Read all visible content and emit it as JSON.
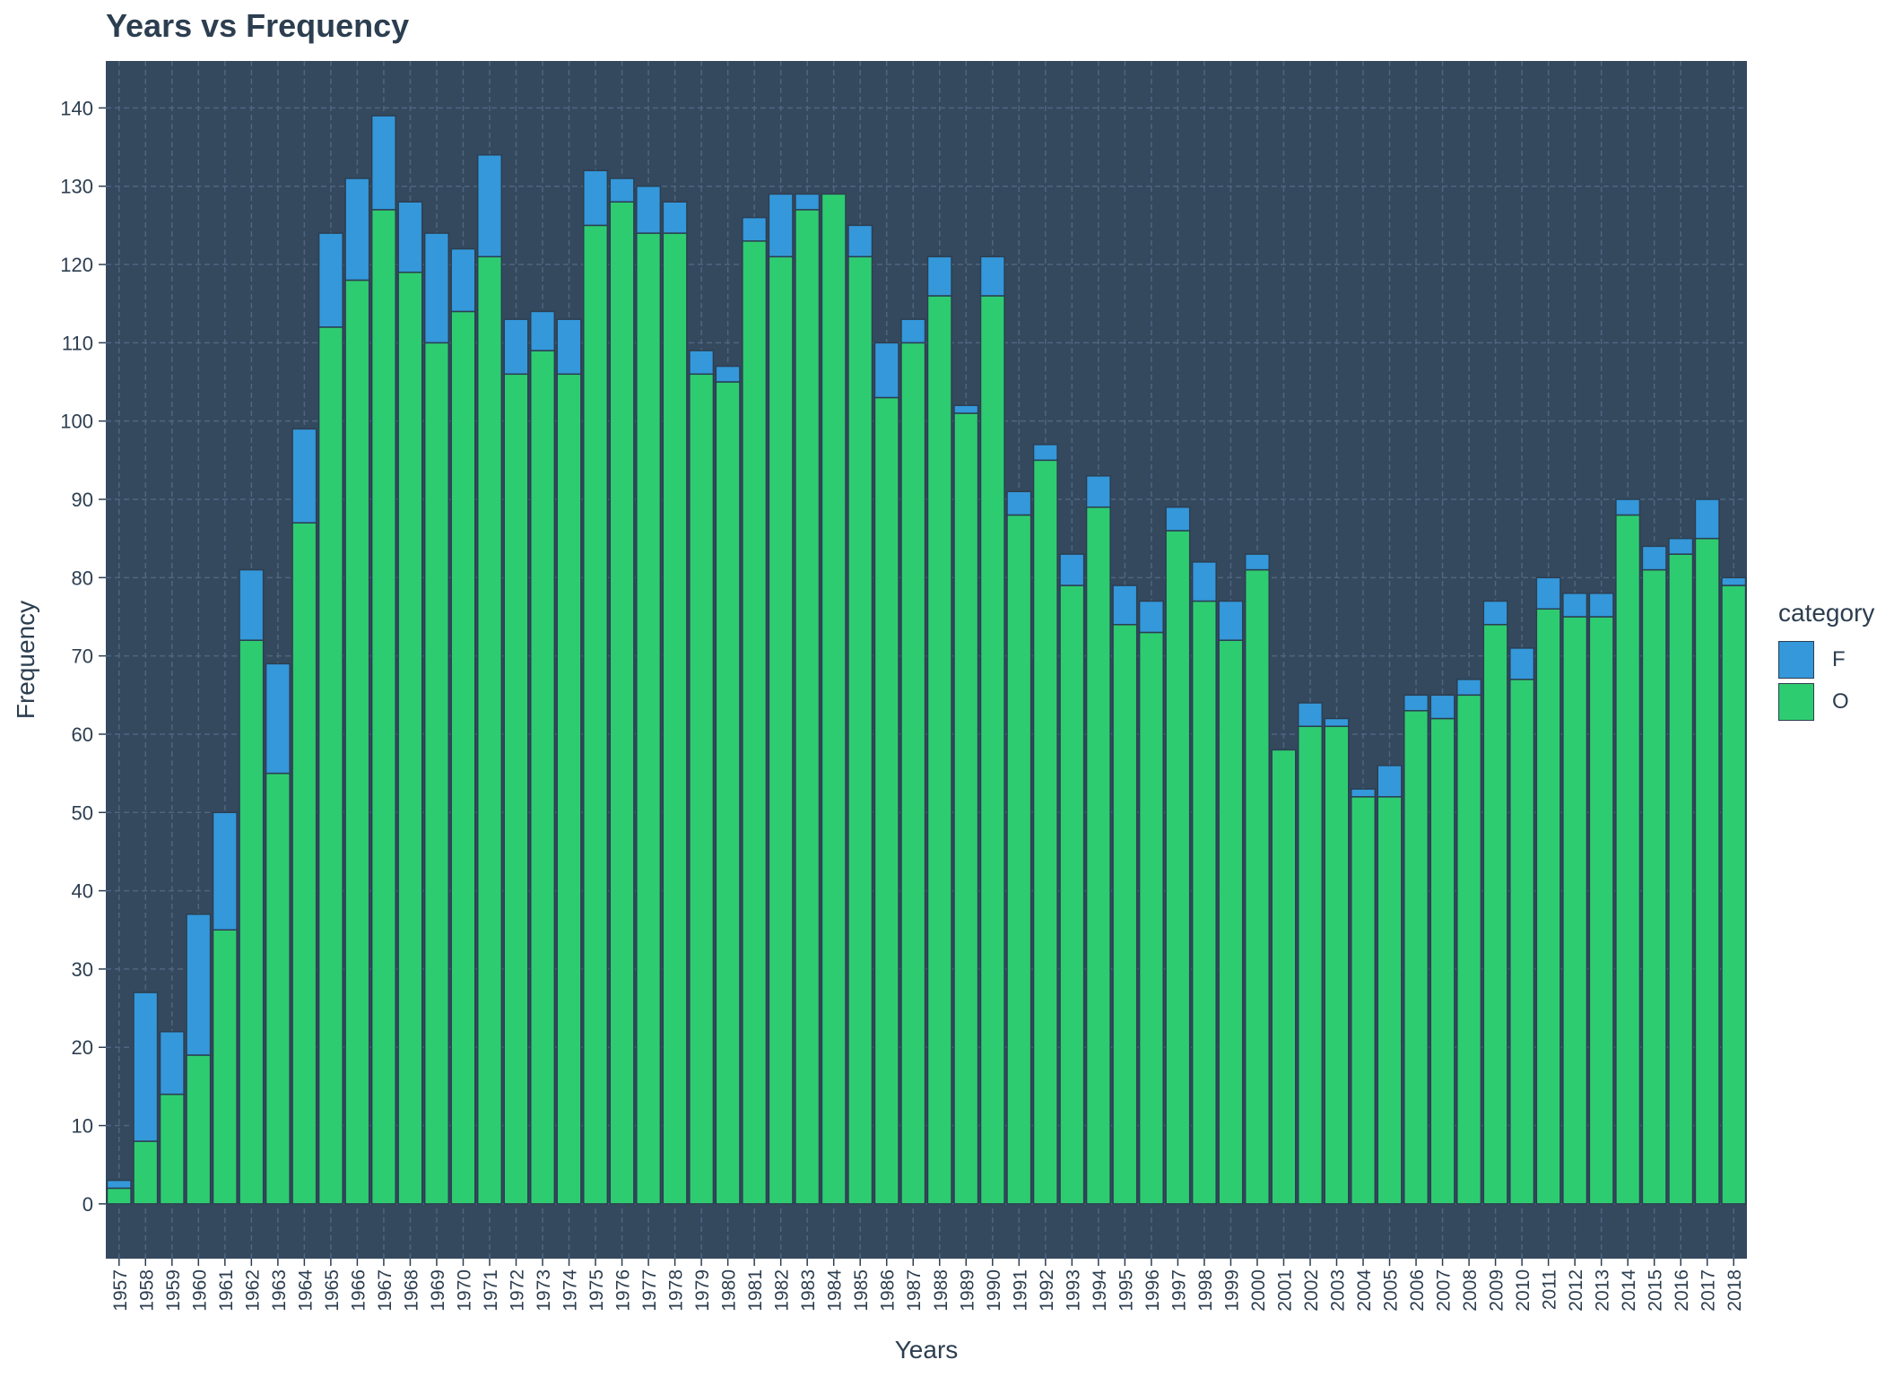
{
  "chart_data": {
    "type": "bar",
    "stacked": true,
    "title": "Years vs Frequency",
    "xlabel": "Years",
    "ylabel": "Frequency",
    "ylim": [
      -7,
      146
    ],
    "yticks": [
      0,
      10,
      20,
      30,
      40,
      50,
      60,
      70,
      80,
      90,
      100,
      110,
      120,
      130,
      140
    ],
    "grid": true,
    "legend_position": "right",
    "legend_title": "category",
    "colors": {
      "panel": "#34495e",
      "grid": "#4f6580",
      "text": "#2c3e50",
      "bar_border": "#2c3e50"
    },
    "categories": [
      "1957",
      "1958",
      "1959",
      "1960",
      "1961",
      "1962",
      "1963",
      "1964",
      "1965",
      "1966",
      "1967",
      "1968",
      "1969",
      "1970",
      "1971",
      "1972",
      "1973",
      "1974",
      "1975",
      "1976",
      "1977",
      "1978",
      "1979",
      "1980",
      "1981",
      "1982",
      "1983",
      "1984",
      "1985",
      "1986",
      "1987",
      "1988",
      "1989",
      "1990",
      "1991",
      "1992",
      "1993",
      "1994",
      "1995",
      "1996",
      "1997",
      "1998",
      "1999",
      "2000",
      "2001",
      "2002",
      "2003",
      "2004",
      "2005",
      "2006",
      "2007",
      "2008",
      "2009",
      "2010",
      "2011",
      "2012",
      "2013",
      "2014",
      "2015",
      "2016",
      "2017",
      "2018"
    ],
    "series": [
      {
        "name": "F",
        "color": "#3498db",
        "values": [
          1,
          19,
          8,
          18,
          15,
          9,
          14,
          12,
          12,
          13,
          12,
          9,
          14,
          8,
          13,
          7,
          5,
          7,
          7,
          3,
          6,
          4,
          3,
          2,
          3,
          8,
          2,
          0,
          4,
          7,
          3,
          5,
          1,
          5,
          3,
          2,
          4,
          4,
          5,
          4,
          3,
          5,
          5,
          2,
          0,
          3,
          1,
          1,
          4,
          2,
          3,
          2,
          3,
          4,
          4,
          3,
          3,
          2,
          3,
          2,
          5,
          1
        ]
      },
      {
        "name": "O",
        "color": "#2ecc71",
        "values": [
          2,
          8,
          14,
          19,
          35,
          72,
          55,
          87,
          112,
          118,
          127,
          119,
          110,
          114,
          121,
          106,
          109,
          106,
          125,
          128,
          124,
          124,
          106,
          105,
          123,
          121,
          127,
          129,
          121,
          103,
          110,
          116,
          101,
          116,
          88,
          95,
          79,
          89,
          74,
          73,
          86,
          77,
          72,
          81,
          58,
          61,
          61,
          52,
          52,
          63,
          62,
          65,
          74,
          67,
          76,
          75,
          75,
          88,
          81,
          83,
          85,
          79
        ]
      }
    ]
  }
}
